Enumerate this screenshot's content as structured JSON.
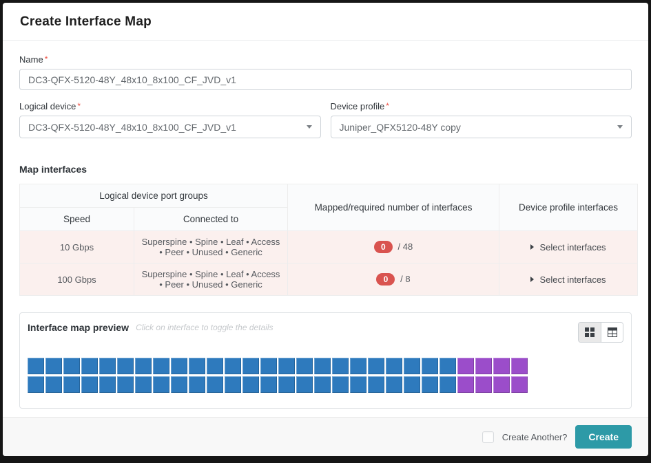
{
  "dialog": {
    "title": "Create Interface Map"
  },
  "form": {
    "name": {
      "label": "Name",
      "required_marker": "*",
      "value": "DC3-QFX-5120-48Y_48x10_8x100_CF_JVD_v1"
    },
    "logical_device": {
      "label": "Logical device",
      "required_marker": "*",
      "value": "DC3-QFX-5120-48Y_48x10_8x100_CF_JVD_v1"
    },
    "device_profile": {
      "label": "Device profile",
      "required_marker": "*",
      "value": "Juniper_QFX5120-48Y copy"
    }
  },
  "map_interfaces": {
    "heading": "Map interfaces",
    "table": {
      "group_header": "Logical device port groups",
      "columns": {
        "speed": "Speed",
        "connected_to": "Connected to",
        "mapped": "Mapped/required number of interfaces",
        "device_profile": "Device profile interfaces"
      },
      "rows": [
        {
          "speed": "10 Gbps",
          "connected_to": "Superspine • Spine • Leaf • Access • Peer • Unused • Generic",
          "mapped_count": "0",
          "required": "/ 48",
          "action": "Select interfaces"
        },
        {
          "speed": "100 Gbps",
          "connected_to": "Superspine • Spine • Leaf • Access • Peer • Unused • Generic",
          "mapped_count": "0",
          "required": "/ 8",
          "action": "Select interfaces"
        }
      ]
    }
  },
  "preview": {
    "title": "Interface map preview",
    "hint": "Click on interface to toggle the details",
    "grid": {
      "rows": 2,
      "cells_per_row": 28,
      "blue_per_row": 24,
      "purple_per_row": 4,
      "blue_color": "#2e7abd",
      "purple_color": "#9b4dca"
    }
  },
  "footer": {
    "create_another_label": "Create Another?",
    "create_label": "Create"
  },
  "colors": {
    "accent_teal": "#2d9aa7",
    "badge_red": "#d9534f",
    "row_pink": "#fbf0ee"
  }
}
